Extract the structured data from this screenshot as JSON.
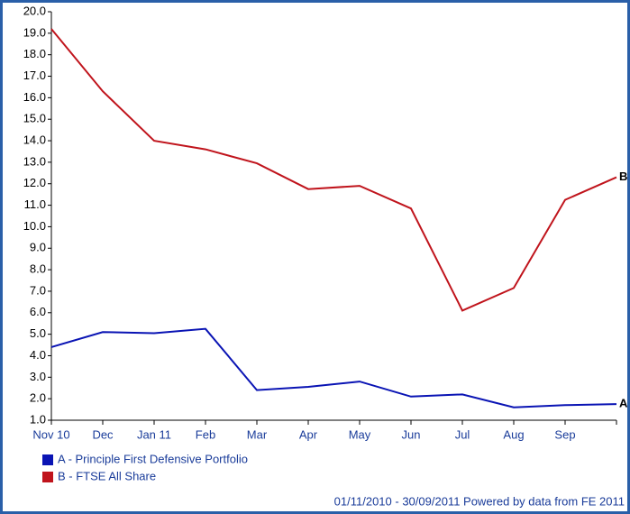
{
  "chart_data": {
    "type": "line",
    "categories": [
      "Nov 10",
      "Dec",
      "Jan 11",
      "Feb",
      "Mar",
      "Apr",
      "May",
      "Jun",
      "Jul",
      "Aug",
      "Sep",
      null
    ],
    "series": [
      {
        "name": "A - Principle First Defensive Portfolio",
        "end_label": "A",
        "color": "#0a14b4",
        "values": [
          4.4,
          5.1,
          5.05,
          5.25,
          2.4,
          2.55,
          2.8,
          2.1,
          2.2,
          1.6,
          1.7,
          1.75
        ]
      },
      {
        "name": "B - FTSE All Share",
        "end_label": "B",
        "color": "#c0141c",
        "values": [
          19.2,
          16.3,
          14.0,
          13.6,
          12.95,
          11.75,
          11.9,
          10.85,
          6.1,
          7.15,
          11.25,
          12.3
        ]
      }
    ],
    "ylim": [
      1,
      20
    ],
    "yticks": [
      {
        "value": 1,
        "label": "1.0"
      },
      {
        "value": 2,
        "label": "2.0"
      },
      {
        "value": 3,
        "label": "3.0"
      },
      {
        "value": 4,
        "label": "4.0"
      },
      {
        "value": 5,
        "label": "5.0"
      },
      {
        "value": 6,
        "label": "6.0"
      },
      {
        "value": 7,
        "label": "7.0"
      },
      {
        "value": 8,
        "label": "8.0"
      },
      {
        "value": 9,
        "label": "9.0"
      },
      {
        "value": 10,
        "label": "10.0"
      },
      {
        "value": 11,
        "label": "11.0"
      },
      {
        "value": 12,
        "label": "12.0"
      },
      {
        "value": 13,
        "label": "13.0"
      },
      {
        "value": 14,
        "label": "14.0"
      },
      {
        "value": 15,
        "label": "15.0"
      },
      {
        "value": 16,
        "label": "16.0"
      },
      {
        "value": 17,
        "label": "17.0"
      },
      {
        "value": 18,
        "label": "18.0"
      },
      {
        "value": 19,
        "label": "19.0"
      },
      {
        "value": 20,
        "label": "20.0"
      }
    ],
    "grid": false,
    "footer": "01/11/2010 - 30/09/2011 Powered by data from FE 2011"
  }
}
